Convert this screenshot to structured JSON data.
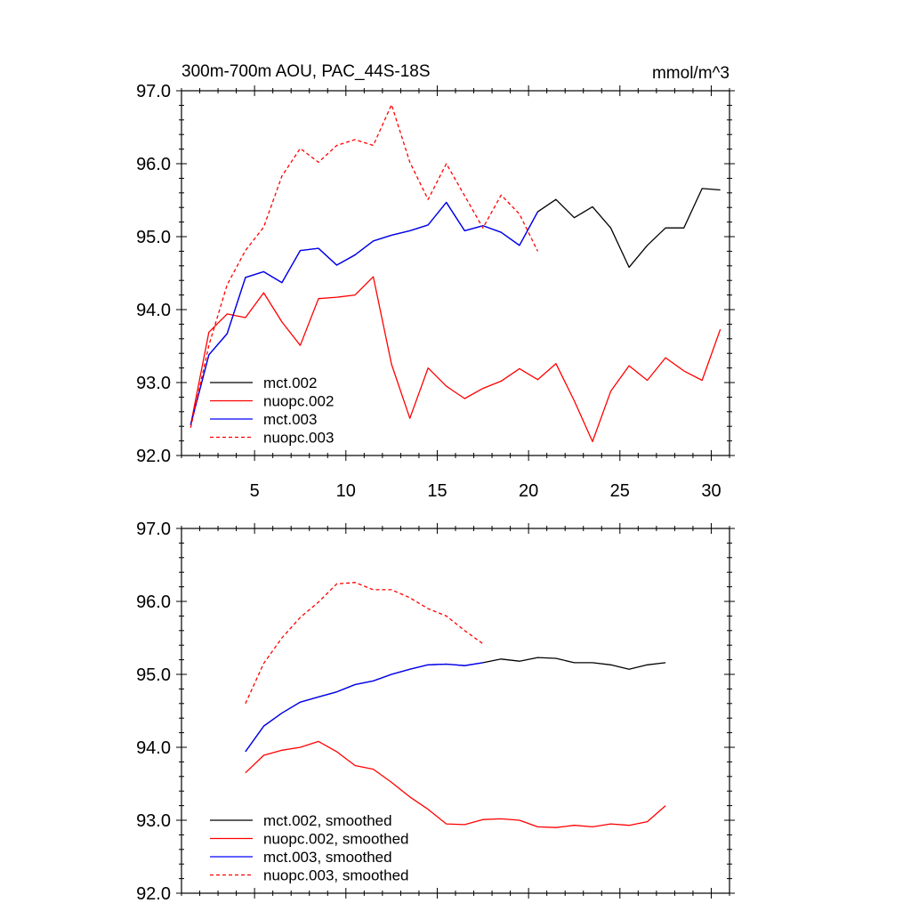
{
  "chart_data": [
    {
      "type": "line",
      "title": "300m-700m AOU, PAC_44S-18S",
      "units": "mmol/m^3",
      "xlabel": "",
      "ylabel": "",
      "xlim": [
        1,
        31
      ],
      "ylim": [
        92.0,
        97.0
      ],
      "xticks": [
        5,
        10,
        15,
        20,
        25,
        30
      ],
      "xtick_labels": [
        "5",
        "10",
        "15",
        "20",
        "25",
        "30"
      ],
      "yticks": [
        92.0,
        93.0,
        94.0,
        95.0,
        96.0,
        97.0
      ],
      "ytick_labels": [
        "92.0",
        "93.0",
        "94.0",
        "95.0",
        "96.0",
        "97.0"
      ],
      "legend_position": "bottom-left",
      "series": [
        {
          "name": "mct.002",
          "color": "#000000",
          "dash": "solid",
          "x": [
            1.5,
            2.5,
            3.5,
            4.5,
            5.5,
            6.5,
            7.5,
            8.5,
            9.5,
            10.5,
            11.5,
            12.5,
            13.5,
            14.5,
            15.5,
            16.5,
            17.5,
            18.5,
            19.5,
            20.5,
            21.5,
            22.5,
            23.5,
            24.5,
            25.5,
            26.5,
            27.5,
            28.5,
            29.5,
            30.5
          ],
          "values": [
            92.42,
            93.38,
            93.67,
            94.44,
            94.52,
            94.37,
            94.81,
            94.84,
            94.61,
            94.75,
            94.94,
            95.02,
            95.08,
            95.16,
            95.47,
            95.08,
            95.15,
            95.06,
            94.88,
            95.34,
            95.51,
            95.26,
            95.41,
            95.12,
            94.58,
            94.88,
            95.12,
            95.12,
            95.66,
            95.64
          ]
        },
        {
          "name": "nuopc.002",
          "color": "#ff0000",
          "dash": "solid",
          "x": [
            1.5,
            2.5,
            3.5,
            4.5,
            5.5,
            6.5,
            7.5,
            8.5,
            9.5,
            10.5,
            11.5,
            12.5,
            13.5,
            14.5,
            15.5,
            16.5,
            17.5,
            18.5,
            19.5,
            20.5,
            21.5,
            22.5,
            23.5,
            24.5,
            25.5,
            26.5,
            27.5,
            28.5,
            29.5,
            30.5
          ],
          "values": [
            92.42,
            93.69,
            93.94,
            93.89,
            94.23,
            93.83,
            93.51,
            94.15,
            94.17,
            94.2,
            94.45,
            93.25,
            92.51,
            93.2,
            92.95,
            92.78,
            92.92,
            93.02,
            93.19,
            93.04,
            93.26,
            92.75,
            92.19,
            92.88,
            93.23,
            93.03,
            93.34,
            93.16,
            93.03,
            93.73
          ]
        },
        {
          "name": "mct.003",
          "color": "#0000ff",
          "dash": "solid",
          "x": [
            1.5,
            2.5,
            3.5,
            4.5,
            5.5,
            6.5,
            7.5,
            8.5,
            9.5,
            10.5,
            11.5,
            12.5,
            13.5,
            14.5,
            15.5,
            16.5,
            17.5,
            18.5,
            19.5,
            20.5
          ],
          "values": [
            92.42,
            93.38,
            93.67,
            94.44,
            94.52,
            94.37,
            94.81,
            94.84,
            94.61,
            94.75,
            94.94,
            95.02,
            95.08,
            95.16,
            95.47,
            95.08,
            95.15,
            95.06,
            94.88,
            95.34
          ]
        },
        {
          "name": "nuopc.003",
          "color": "#ff0000",
          "dash": "dashed",
          "x": [
            1.5,
            2.5,
            3.5,
            4.5,
            5.5,
            6.5,
            7.5,
            8.5,
            9.5,
            10.5,
            11.5,
            12.5,
            13.5,
            14.5,
            15.5,
            16.5,
            17.5,
            18.5,
            19.5,
            20.5
          ],
          "values": [
            92.38,
            93.51,
            94.34,
            94.81,
            95.13,
            95.83,
            96.21,
            96.02,
            96.25,
            96.33,
            96.25,
            96.81,
            96.02,
            95.51,
            96.0,
            95.56,
            95.12,
            95.57,
            95.31,
            94.8
          ]
        }
      ]
    },
    {
      "type": "line",
      "title": "",
      "units": "",
      "xlabel": "",
      "ylabel": "",
      "xlim": [
        1,
        31
      ],
      "ylim": [
        92.0,
        97.0
      ],
      "xticks": [
        5,
        10,
        15,
        20,
        25,
        30
      ],
      "xtick_labels": [],
      "yticks": [
        92.0,
        93.0,
        94.0,
        95.0,
        96.0,
        97.0
      ],
      "ytick_labels": [
        "92.0",
        "93.0",
        "94.0",
        "95.0",
        "96.0",
        "97.0"
      ],
      "legend_position": "bottom-left",
      "series": [
        {
          "name": "mct.002, smoothed",
          "color": "#000000",
          "dash": "solid",
          "x": [
            4.5,
            5.5,
            6.5,
            7.5,
            8.5,
            9.5,
            10.5,
            11.5,
            12.5,
            13.5,
            14.5,
            15.5,
            16.5,
            17.5,
            18.5,
            19.5,
            20.5,
            21.5,
            22.5,
            23.5,
            24.5,
            25.5,
            26.5,
            27.5
          ],
          "values": [
            93.94,
            94.29,
            94.47,
            94.62,
            94.69,
            94.76,
            94.86,
            94.91,
            95.0,
            95.07,
            95.13,
            95.14,
            95.12,
            95.16,
            95.21,
            95.18,
            95.23,
            95.22,
            95.16,
            95.16,
            95.13,
            95.07,
            95.13,
            95.16
          ]
        },
        {
          "name": "nuopc.002, smoothed",
          "color": "#ff0000",
          "dash": "solid",
          "x": [
            4.5,
            5.5,
            6.5,
            7.5,
            8.5,
            9.5,
            10.5,
            11.5,
            12.5,
            13.5,
            14.5,
            15.5,
            16.5,
            17.5,
            18.5,
            19.5,
            20.5,
            21.5,
            22.5,
            23.5,
            24.5,
            25.5,
            26.5,
            27.5
          ],
          "values": [
            93.65,
            93.89,
            93.96,
            94.0,
            94.08,
            93.94,
            93.75,
            93.7,
            93.52,
            93.32,
            93.15,
            92.95,
            92.94,
            93.01,
            93.02,
            93.0,
            92.91,
            92.9,
            92.93,
            92.91,
            92.95,
            92.93,
            92.98,
            93.2
          ]
        },
        {
          "name": "mct.003, smoothed",
          "color": "#0000ff",
          "dash": "solid",
          "x": [
            4.5,
            5.5,
            6.5,
            7.5,
            8.5,
            9.5,
            10.5,
            11.5,
            12.5,
            13.5,
            14.5,
            15.5,
            16.5,
            17.5
          ],
          "values": [
            93.94,
            94.29,
            94.47,
            94.62,
            94.69,
            94.76,
            94.86,
            94.91,
            95.0,
            95.07,
            95.13,
            95.14,
            95.12,
            95.16
          ]
        },
        {
          "name": "nuopc.003, smoothed",
          "color": "#ff0000",
          "dash": "dashed",
          "x": [
            4.5,
            5.5,
            6.5,
            7.5,
            8.5,
            9.5,
            10.5,
            11.5,
            12.5,
            13.5,
            14.5,
            15.5,
            16.5,
            17.5
          ],
          "values": [
            94.6,
            95.15,
            95.5,
            95.78,
            95.99,
            96.24,
            96.26,
            96.16,
            96.16,
            96.05,
            95.9,
            95.8,
            95.6,
            95.42
          ]
        }
      ]
    }
  ]
}
